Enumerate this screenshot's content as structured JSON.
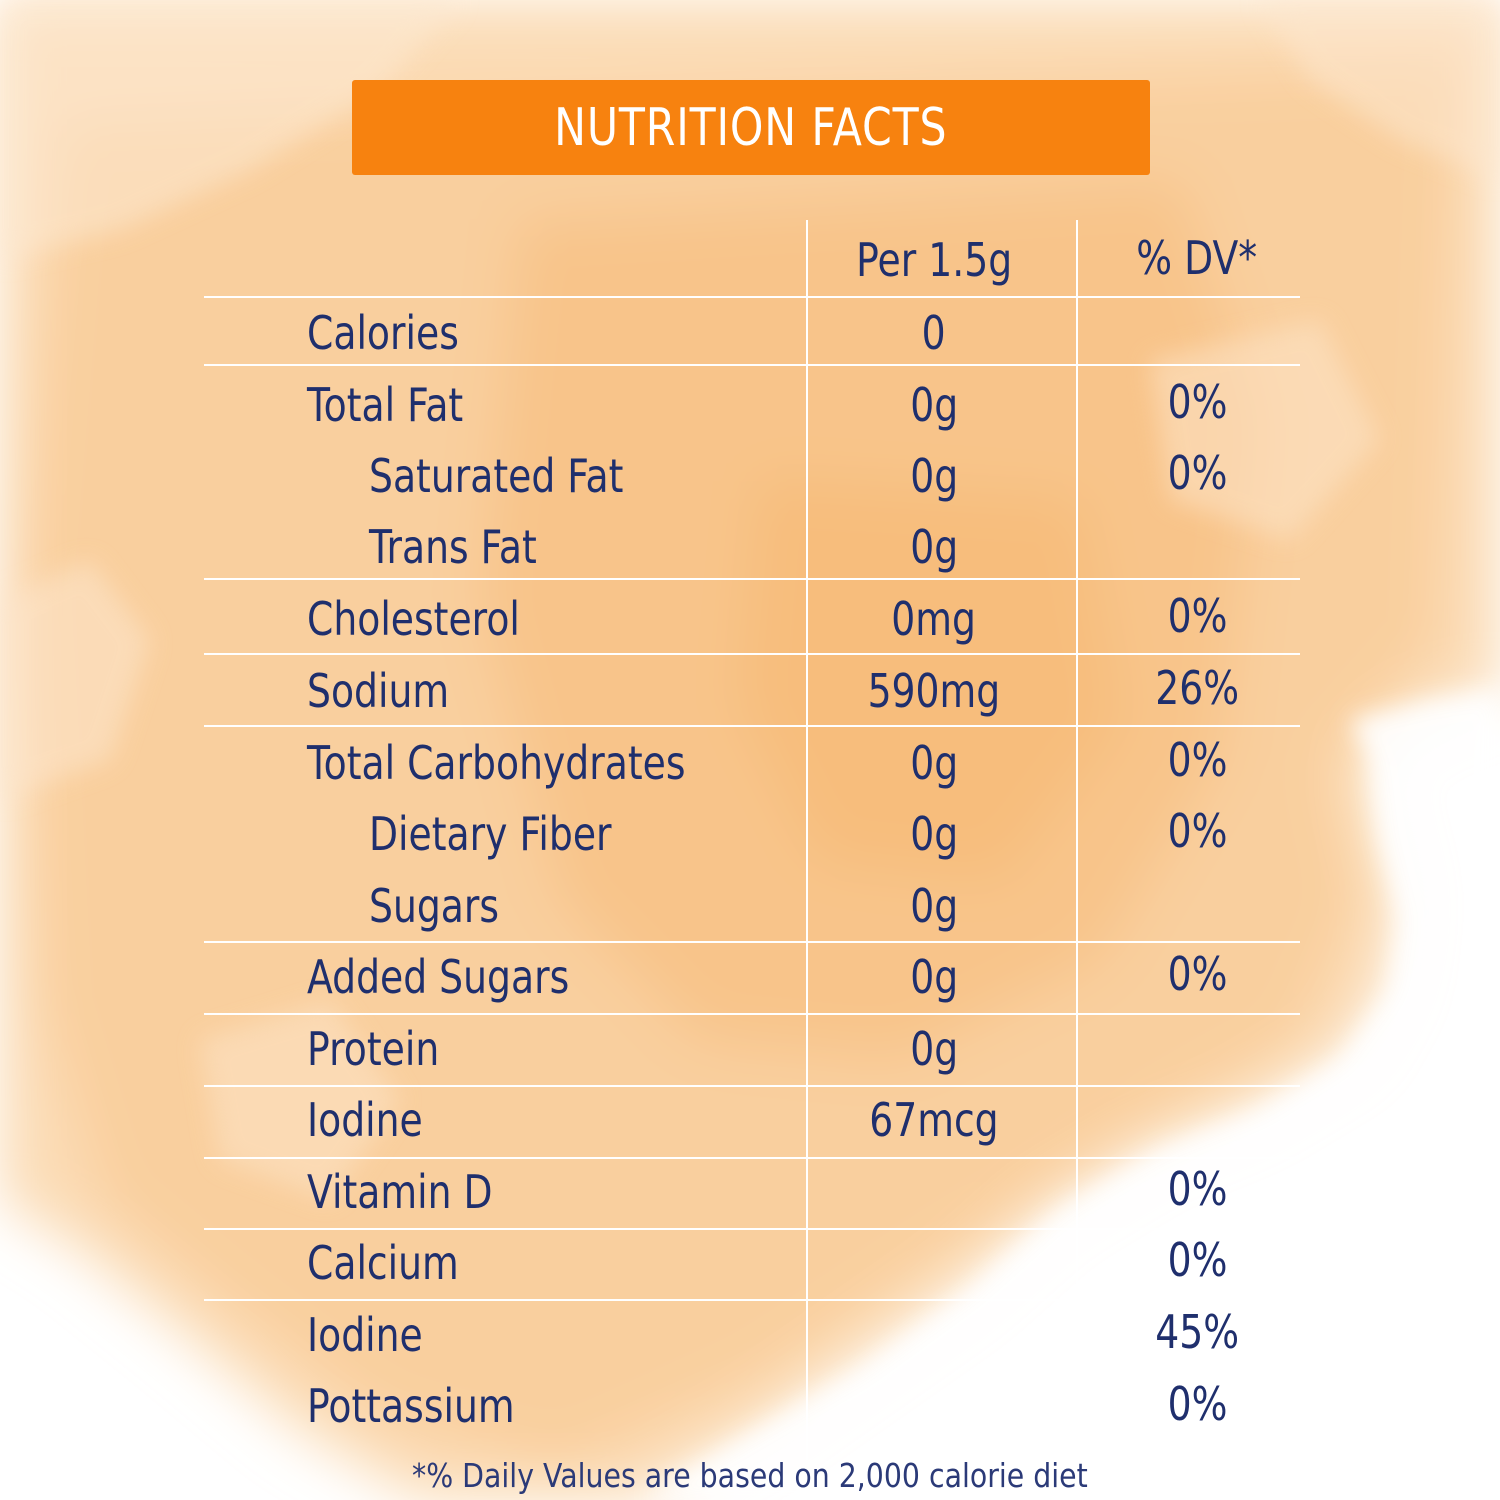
{
  "title": "NUTRITION FACTS",
  "columns": {
    "per": "Per 1.5g",
    "dv": "% DV*"
  },
  "rows": [
    {
      "label": "Calories",
      "amount": "0",
      "dv": ""
    },
    {
      "label": "Total Fat",
      "amount": "0g",
      "dv": "0%"
    },
    {
      "label": "Saturated Fat",
      "amount": "0g",
      "dv": "0%"
    },
    {
      "label": "Trans Fat",
      "amount": "0g",
      "dv": ""
    },
    {
      "label": "Cholesterol",
      "amount": "0mg",
      "dv": "0%"
    },
    {
      "label": "Sodium",
      "amount": "590mg",
      "dv": "26%"
    },
    {
      "label": "Total Carbohydrates",
      "amount": "0g",
      "dv": "0%"
    },
    {
      "label": "Dietary Fiber",
      "amount": "0g",
      "dv": "0%"
    },
    {
      "label": "Sugars",
      "amount": "0g",
      "dv": ""
    },
    {
      "label": "Added Sugars",
      "amount": "0g",
      "dv": "0%"
    },
    {
      "label": "Protein",
      "amount": "0g",
      "dv": ""
    },
    {
      "label": "Iodine",
      "amount": "67mcg",
      "dv": ""
    },
    {
      "label": "Vitamin D",
      "amount": "",
      "dv": "0%"
    },
    {
      "label": "Calcium",
      "amount": "",
      "dv": "0%"
    },
    {
      "label": "Iodine",
      "amount": "",
      "dv": "45%"
    },
    {
      "label": "Pottassium",
      "amount": "",
      "dv": "0%"
    }
  ],
  "footnote": "*% Daily Values are based on 2,000 calorie diet",
  "colors": {
    "banner": "#f7820f",
    "text": "#1f2f6d",
    "wash": "#f8c891"
  }
}
